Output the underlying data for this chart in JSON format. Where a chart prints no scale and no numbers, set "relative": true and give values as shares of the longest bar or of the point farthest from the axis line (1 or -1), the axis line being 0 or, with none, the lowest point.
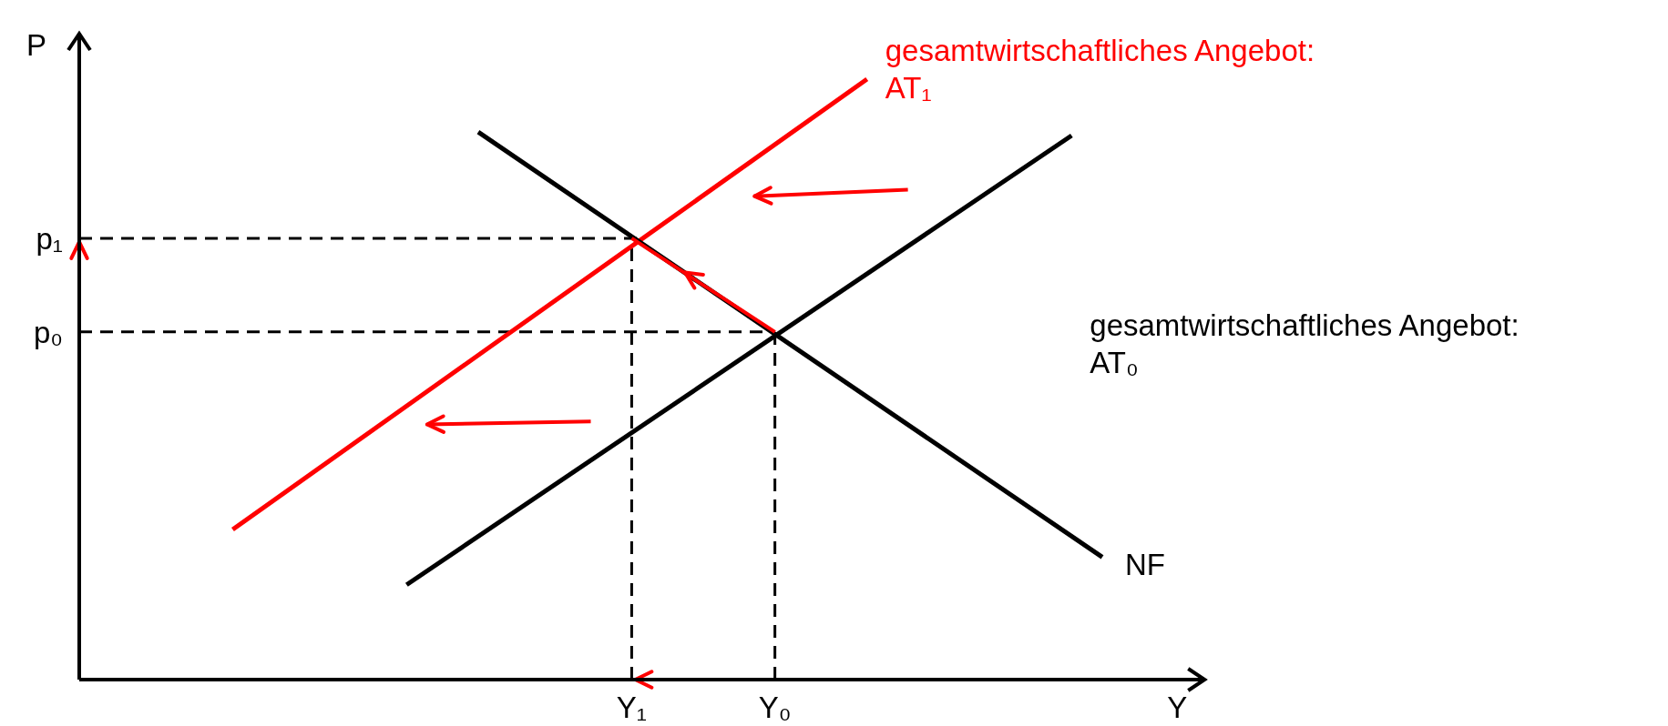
{
  "chart_data": {
    "type": "line",
    "relative": true,
    "xlabel": "Y",
    "ylabel": "P",
    "legend": false,
    "marker": "none",
    "line_style": "solid",
    "categories": [
      null,
      null,
      null,
      null,
      null,
      null,
      null,
      null,
      null,
      null,
      null,
      null,
      null,
      null,
      null,
      null,
      null,
      null,
      null,
      null,
      null,
      null,
      null,
      null,
      null,
      null,
      null,
      null,
      null,
      null,
      null,
      null,
      null,
      null,
      null,
      null,
      null,
      null,
      null,
      null,
      null,
      null,
      null,
      null,
      null,
      null,
      null,
      null,
      null,
      null,
      null,
      null,
      null,
      null,
      "Y₁",
      null,
      null,
      null,
      null,
      null,
      null,
      null,
      null,
      null,
      null,
      null,
      null,
      null,
      "Y₀",
      null,
      null,
      null,
      null,
      null,
      null,
      null,
      null,
      null,
      null,
      null,
      null,
      null,
      null,
      null,
      null,
      null,
      null,
      null,
      null,
      null,
      null,
      null,
      null,
      null,
      null,
      null,
      null,
      null,
      null,
      null,
      null,
      null,
      null,
      null,
      null,
      null,
      null,
      null,
      null,
      null,
      null
    ],
    "series": [
      {
        "name": "gesamtwirtschaftliches Angebot: AT₁",
        "color": "#ff0000",
        "values": [
          null,
          null,
          null,
          null,
          null,
          null,
          null,
          null,
          null,
          null,
          null,
          null,
          null,
          null,
          null,
          0.25,
          null,
          null,
          null,
          null,
          null,
          null,
          null,
          null,
          null,
          null,
          null,
          null,
          null,
          null,
          null,
          null,
          null,
          null,
          null,
          null,
          null,
          null,
          null,
          null,
          null,
          null,
          null,
          null,
          null,
          null,
          null,
          null,
          null,
          null,
          null,
          null,
          null,
          null,
          null,
          null,
          null,
          null,
          null,
          null,
          null,
          null,
          null,
          null,
          null,
          null,
          null,
          null,
          null,
          null,
          null,
          null,
          null,
          null,
          null,
          null,
          null,
          1,
          null,
          null,
          null,
          null,
          null,
          null,
          null,
          null,
          null,
          null,
          null,
          null,
          null,
          null,
          null,
          null,
          null,
          null,
          null,
          null,
          null,
          null,
          null,
          null,
          null,
          null,
          null,
          null,
          null,
          null,
          null,
          null,
          null
        ]
      },
      {
        "name": "gesamtwirtschaftliches Angebot: AT₀",
        "color": "#000000",
        "values": [
          null,
          null,
          null,
          null,
          null,
          null,
          null,
          null,
          null,
          null,
          null,
          null,
          null,
          null,
          null,
          null,
          null,
          null,
          null,
          null,
          null,
          null,
          null,
          null,
          null,
          null,
          null,
          null,
          null,
          null,
          null,
          null,
          0.158,
          null,
          null,
          null,
          null,
          null,
          null,
          null,
          null,
          null,
          null,
          null,
          null,
          null,
          null,
          null,
          null,
          null,
          null,
          null,
          null,
          null,
          null,
          null,
          null,
          null,
          null,
          null,
          null,
          null,
          null,
          null,
          null,
          null,
          null,
          null,
          null,
          null,
          null,
          null,
          null,
          null,
          null,
          null,
          null,
          null,
          null,
          null,
          null,
          null,
          null,
          null,
          null,
          null,
          null,
          null,
          null,
          null,
          null,
          null,
          null,
          null,
          null,
          null,
          null,
          0.906,
          null,
          null,
          null,
          null,
          null,
          null,
          null,
          null,
          null,
          null,
          null,
          null,
          null
        ]
      },
      {
        "name": "NF",
        "color": "#000000",
        "values": [
          null,
          null,
          null,
          null,
          null,
          null,
          null,
          null,
          null,
          null,
          null,
          null,
          null,
          null,
          null,
          null,
          null,
          null,
          null,
          null,
          null,
          null,
          null,
          null,
          null,
          null,
          null,
          null,
          null,
          null,
          null,
          null,
          null,
          null,
          null,
          null,
          null,
          null,
          null,
          0.912,
          null,
          null,
          null,
          null,
          null,
          null,
          null,
          null,
          null,
          null,
          null,
          null,
          null,
          null,
          null,
          null,
          null,
          null,
          null,
          null,
          null,
          null,
          null,
          null,
          null,
          null,
          null,
          null,
          null,
          null,
          null,
          null,
          null,
          null,
          null,
          null,
          null,
          null,
          null,
          null,
          null,
          null,
          null,
          null,
          null,
          null,
          null,
          null,
          null,
          null,
          null,
          null,
          null,
          null,
          null,
          null,
          null,
          null,
          null,
          null,
          0.204,
          null,
          null,
          null,
          null,
          null,
          null,
          null,
          null,
          null,
          null
        ]
      }
    ],
    "ref_lines": [
      {
        "axis": "y",
        "value": 0.735,
        "label": "p₁",
        "color": "#000000",
        "line_style": "dashed"
      },
      {
        "axis": "y",
        "value": 0.579,
        "label": "p₀",
        "color": "#000000",
        "line_style": "dashed"
      },
      {
        "axis": "x",
        "value": "Y₁",
        "color": "#000000",
        "line_style": "dashed"
      },
      {
        "axis": "x",
        "value": "Y₀",
        "color": "#000000",
        "line_style": "dashed"
      }
    ]
  }
}
